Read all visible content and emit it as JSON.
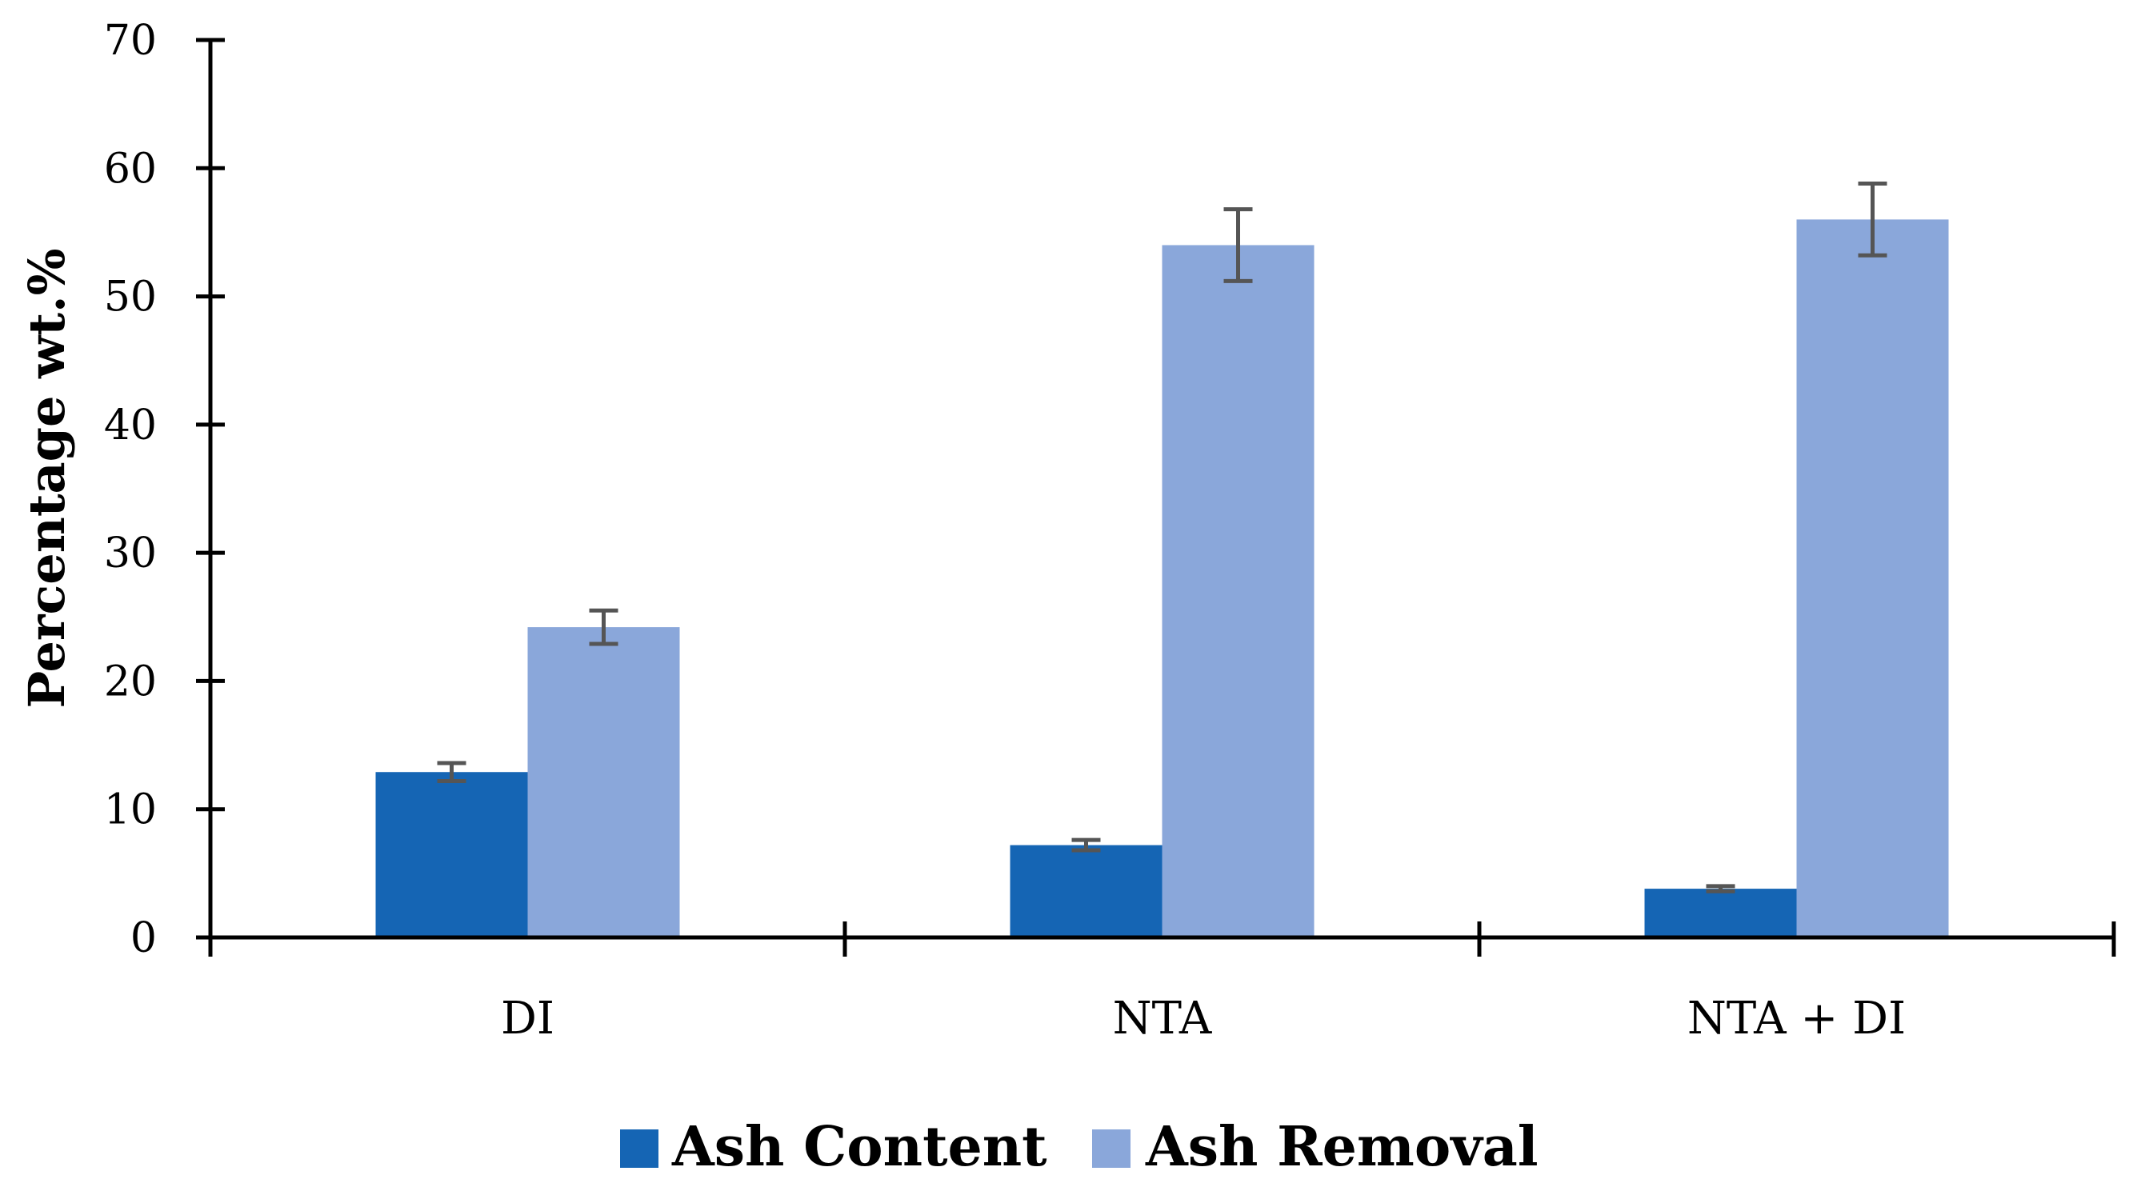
{
  "chart_data": {
    "type": "bar",
    "title": "",
    "xlabel": "",
    "ylabel": "Percentage wt.%",
    "ylim": [
      0,
      70
    ],
    "yticks": [
      0,
      10,
      20,
      30,
      40,
      50,
      60,
      70
    ],
    "categories": [
      "DI",
      "NTA",
      "NTA + DI"
    ],
    "series": [
      {
        "name": "Ash Content",
        "color": "#1565b4",
        "values": [
          12.9,
          7.2,
          3.8
        ],
        "error": [
          0.7,
          0.4,
          0.2
        ]
      },
      {
        "name": "Ash Removal",
        "color": "#8aa7da",
        "values": [
          24.2,
          54.0,
          56.0
        ],
        "error": [
          1.3,
          2.8,
          2.8
        ]
      }
    ],
    "grid": false,
    "legend_position": "bottom-center"
  }
}
